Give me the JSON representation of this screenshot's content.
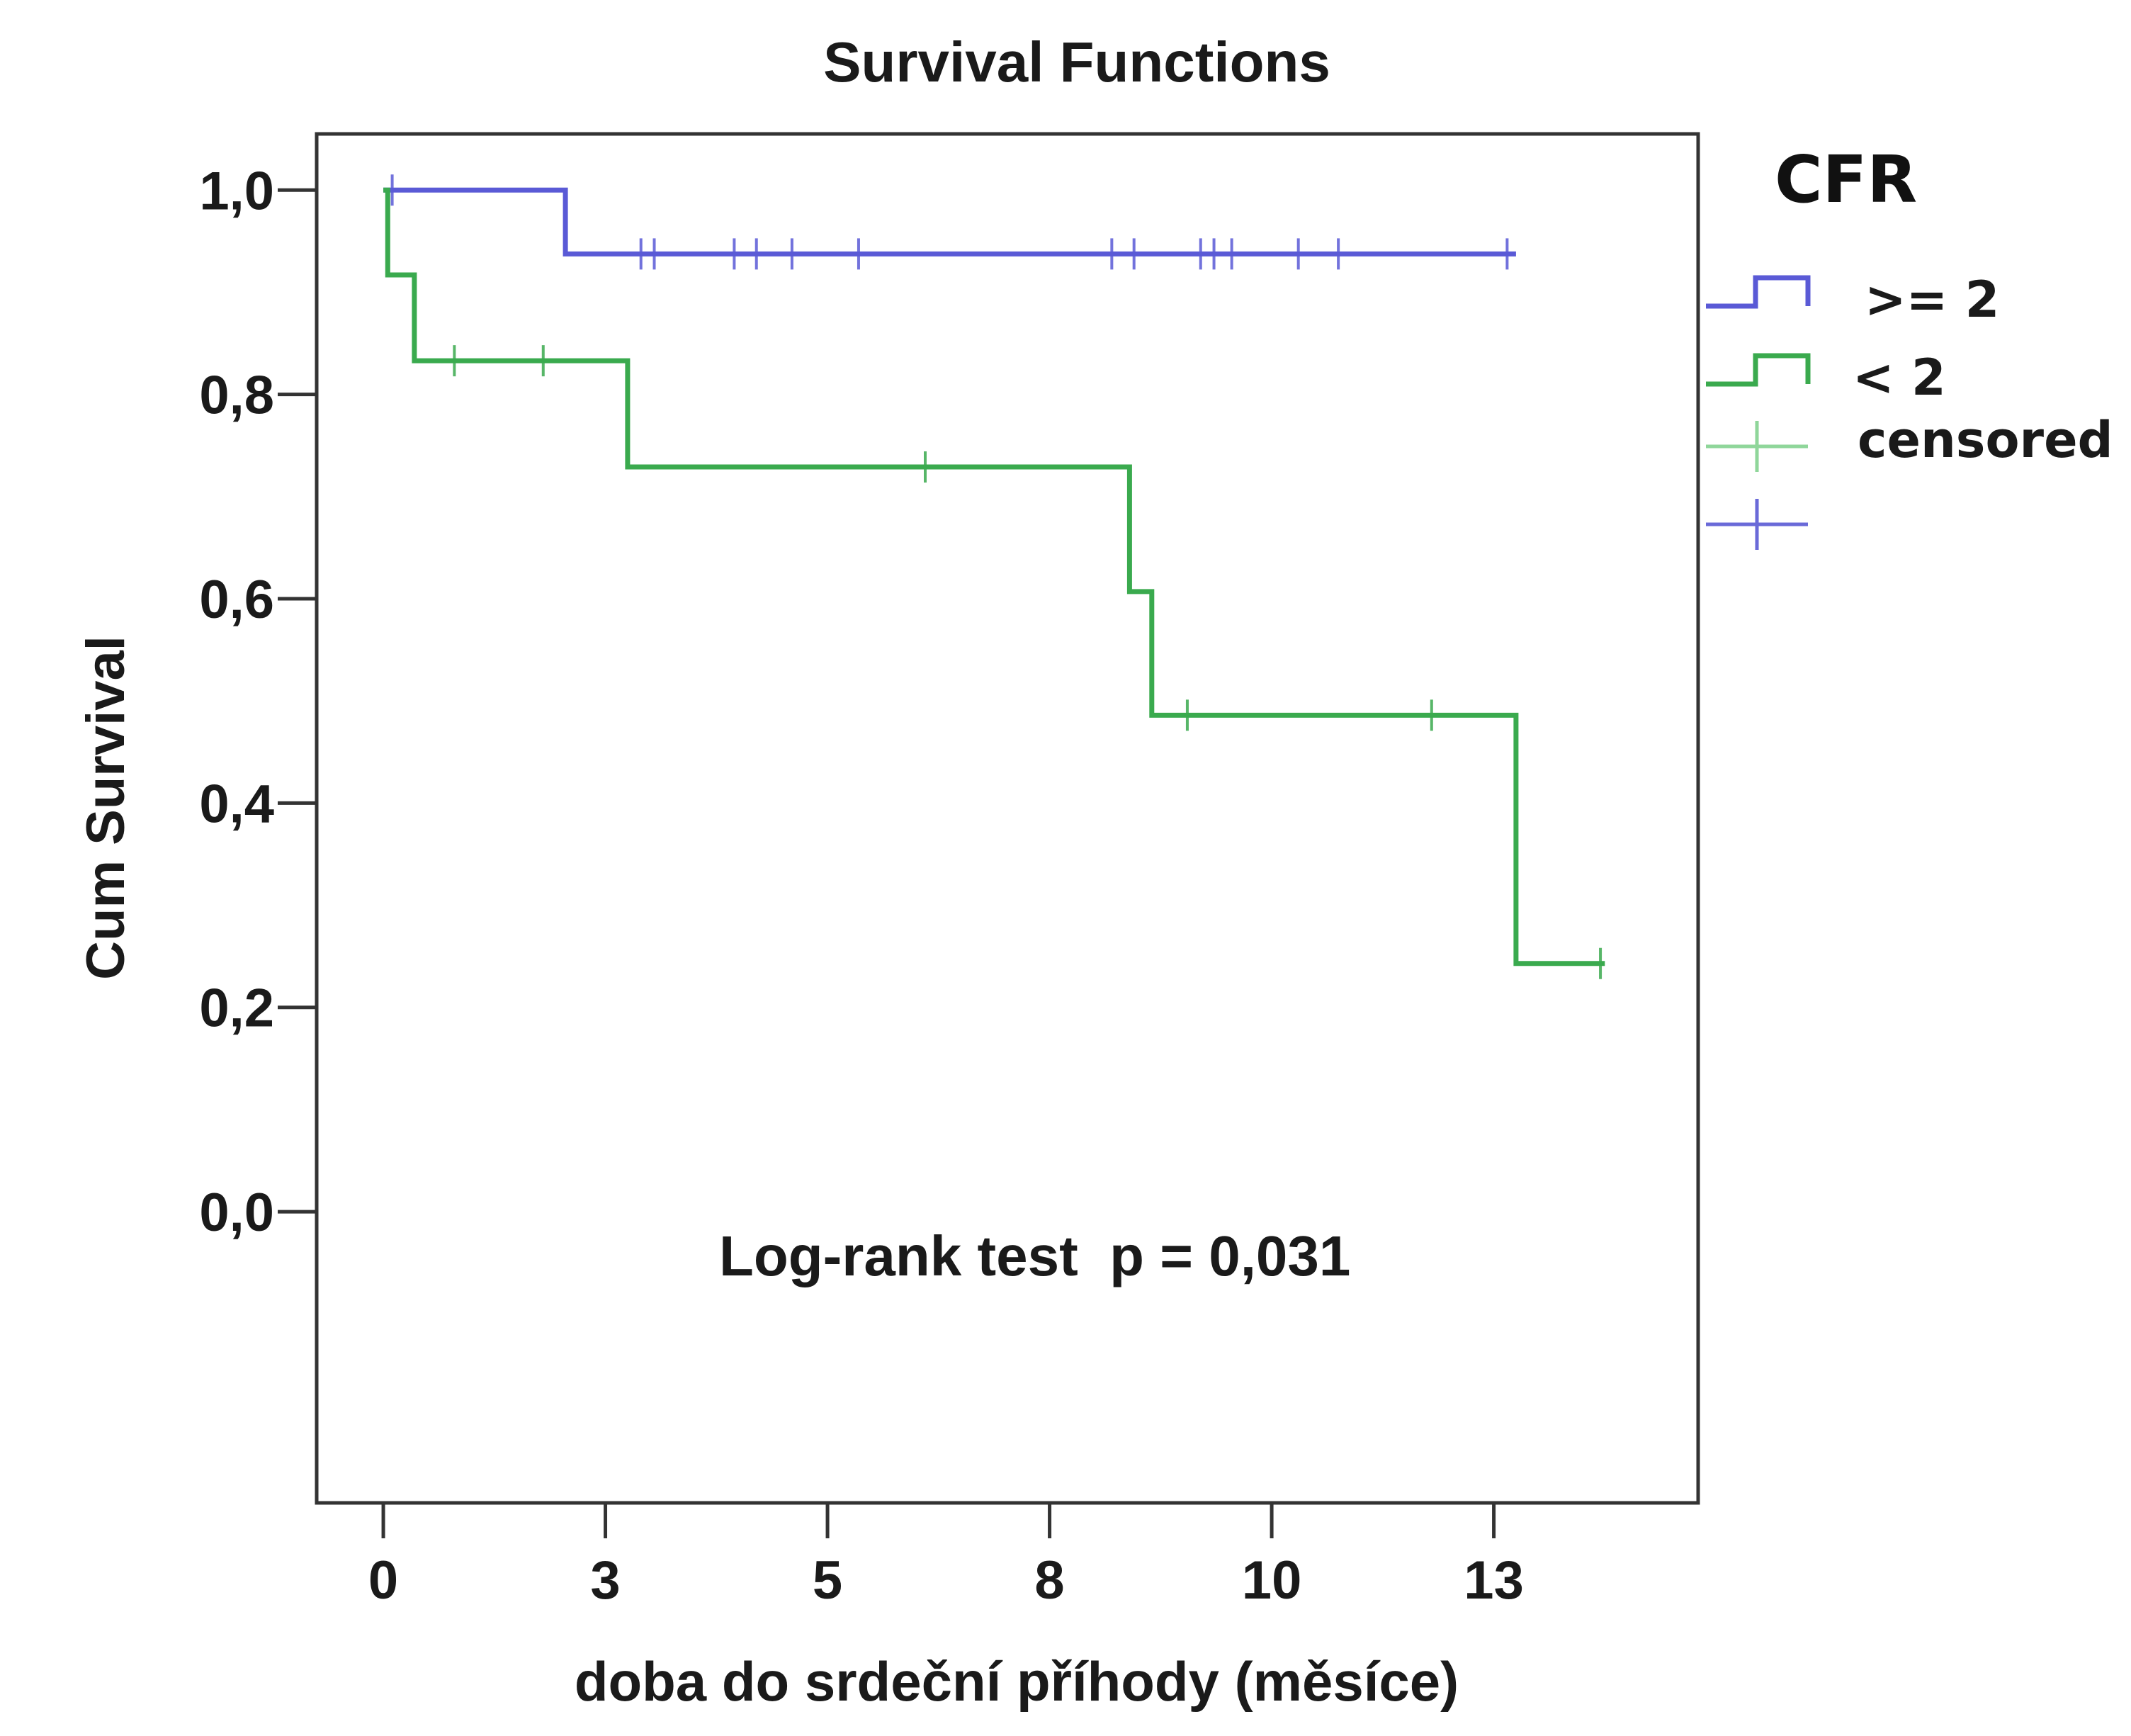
{
  "chart_data": {
    "type": "line",
    "subtype": "kaplan-meier step",
    "title": "Survival Functions",
    "xlabel": "doba do srdeční příhody (měsíce)",
    "ylabel": "Cum Survival",
    "xlim": [
      -1.5,
      29.6
    ],
    "ylim": [
      -0.285,
      1.055
    ],
    "x_ticks": [
      {
        "value": 0,
        "label": "0"
      },
      {
        "value": 5,
        "label": "3"
      },
      {
        "value": 10,
        "label": "5"
      },
      {
        "value": 15,
        "label": "8"
      },
      {
        "value": 20,
        "label": "10"
      },
      {
        "value": 25,
        "label": "13"
      }
    ],
    "y_ticks": [
      {
        "value": 0.0,
        "label": "0,0"
      },
      {
        "value": 0.2,
        "label": "0,2"
      },
      {
        "value": 0.4,
        "label": "0,4"
      },
      {
        "value": 0.6,
        "label": "0,6"
      },
      {
        "value": 0.8,
        "label": "0,8"
      },
      {
        "value": 1.0,
        "label": "1,0"
      }
    ],
    "grid": false,
    "legend_title": "CFR",
    "legend_position": "right",
    "legend_entries": [
      ">= 2",
      "< 2",
      "censored"
    ],
    "annotation": "Log-rank test  p = 0,031",
    "series": [
      {
        "name": ">= 2",
        "color": "#5a5ad6",
        "steps": [
          [
            0,
            1.0
          ],
          [
            4.1,
            0.9375
          ],
          [
            25.5,
            0.9375
          ]
        ],
        "censored": [
          0.2,
          5.8,
          6.1,
          7.9,
          8.4,
          9.2,
          10.7,
          16.4,
          16.9,
          18.4,
          18.7,
          19.1,
          20.6,
          21.5,
          25.3
        ]
      },
      {
        "name": "< 2",
        "color": "#3aaa4e",
        "steps": [
          [
            0,
            1.0
          ],
          [
            0.1,
            0.917
          ],
          [
            0.7,
            0.833
          ],
          [
            5.5,
            0.729
          ],
          [
            16.8,
            0.607
          ],
          [
            17.3,
            0.486
          ],
          [
            25.5,
            0.243
          ],
          [
            27.5,
            0.243
          ]
        ],
        "censored": [
          1.6,
          3.6,
          12.2,
          18.1,
          23.6,
          27.4
        ]
      }
    ]
  }
}
